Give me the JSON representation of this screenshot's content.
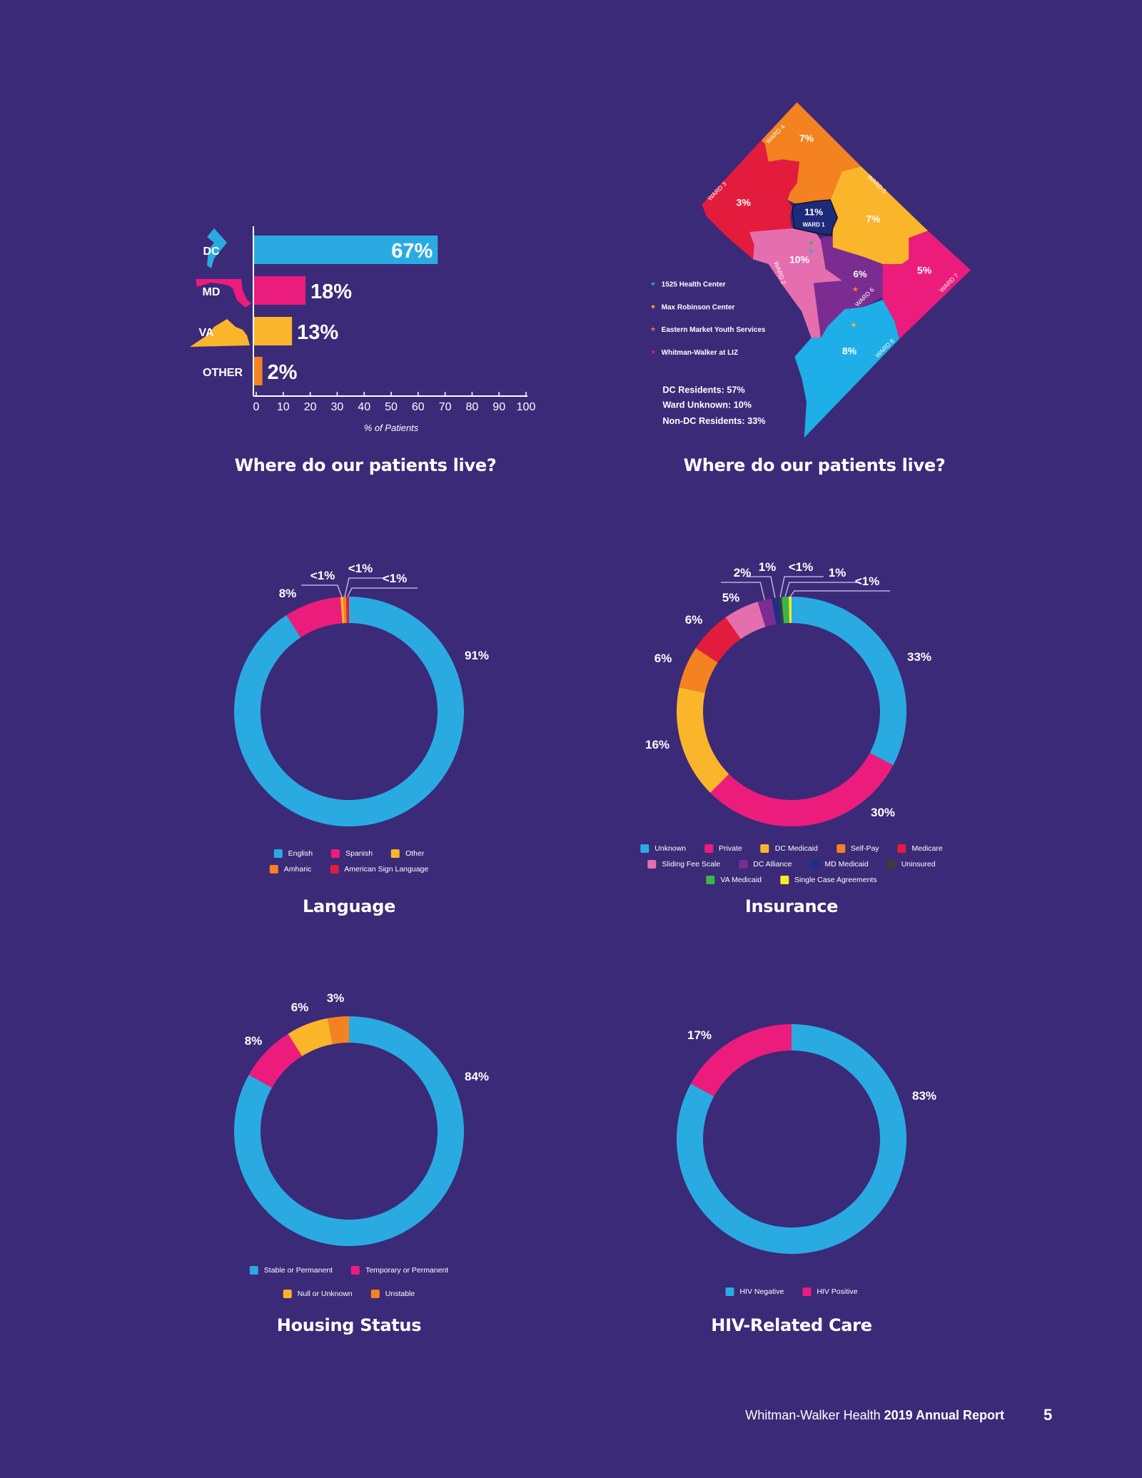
{
  "chart_data": [
    {
      "type": "bar",
      "orientation": "horizontal",
      "title": "Where do our patients live?",
      "categories": [
        "DC",
        "MD",
        "VA",
        "OTHER"
      ],
      "values": [
        67,
        18,
        13,
        2
      ],
      "value_labels": [
        "67%",
        "18%",
        "13%",
        "2%"
      ],
      "colors": [
        "#29abe2",
        "#ec1c7c",
        "#fbb52b",
        "#f58220"
      ],
      "xlabel": "% of Patients",
      "ylabel": "",
      "xlim": [
        0,
        100
      ],
      "xticks": [
        "0",
        "10",
        "20",
        "30",
        "40",
        "50",
        "60",
        "70",
        "80",
        "90",
        "100"
      ],
      "grid": false
    },
    {
      "type": "pie",
      "donut": true,
      "title": "Language",
      "slices": [
        {
          "label": "English",
          "value": 91,
          "display": "91%",
          "color": "#29abe2"
        },
        {
          "label": "Spanish",
          "value": 8,
          "display": "8%",
          "color": "#ec1c7c"
        },
        {
          "label": "Other",
          "value": 0.4,
          "display": "<1%",
          "color": "#fbb52b"
        },
        {
          "label": "Amharic",
          "value": 0.4,
          "display": "<1%",
          "color": "#f58220"
        },
        {
          "label": "American Sign Language",
          "value": 0.4,
          "display": "<1%",
          "color": "#e31b3d"
        }
      ],
      "legend_order": [
        "English",
        "Spanish",
        "Other",
        "Amharic",
        "American Sign Language"
      ]
    },
    {
      "type": "pie",
      "donut": true,
      "title": "Insurance",
      "slices": [
        {
          "label": "Unknown",
          "value": 33,
          "display": "33%",
          "color": "#29abe2"
        },
        {
          "label": "Private",
          "value": 30,
          "display": "30%",
          "color": "#ec1c7c"
        },
        {
          "label": "DC Medicaid",
          "value": 16,
          "display": "16%",
          "color": "#fbb52b"
        },
        {
          "label": "Self-Pay",
          "value": 6,
          "display": "6%",
          "color": "#f58220"
        },
        {
          "label": "Medicare",
          "value": 6,
          "display": "6%",
          "color": "#e31b3d"
        },
        {
          "label": "Sliding Fee Scale",
          "value": 5,
          "display": "5%",
          "color": "#e56fae"
        },
        {
          "label": "DC Alliance",
          "value": 2,
          "display": "2%",
          "color": "#7b2c91"
        },
        {
          "label": "MD Medicaid",
          "value": 1,
          "display": "1%",
          "color": "#1e3085"
        },
        {
          "label": "Uninsured",
          "value": 0.4,
          "display": "<1%",
          "color": "#3d3d3d"
        },
        {
          "label": "VA Medicaid",
          "value": 1,
          "display": "1%",
          "color": "#3ab54a"
        },
        {
          "label": "Single Case Agreements",
          "value": 0.4,
          "display": "<1%",
          "color": "#f4ec24"
        }
      ]
    },
    {
      "type": "pie",
      "donut": true,
      "title": "Housing Status",
      "slices": [
        {
          "label": "Stable or Permanent",
          "value": 84,
          "display": "84%",
          "color": "#29abe2"
        },
        {
          "label": "Temporary or Permanent",
          "value": 8,
          "display": "8%",
          "color": "#ec1c7c"
        },
        {
          "label": "Null or Unknown",
          "value": 6,
          "display": "6%",
          "color": "#fbb52b"
        },
        {
          "label": "Unstable",
          "value": 3,
          "display": "3%",
          "color": "#f58220"
        }
      ]
    },
    {
      "type": "pie",
      "donut": true,
      "title": "HIV-Related Care",
      "slices": [
        {
          "label": "HIV Negative",
          "value": 83,
          "display": "83%",
          "color": "#29abe2"
        },
        {
          "label": "HIV Positive",
          "value": 17,
          "display": "17%",
          "color": "#ec1c7c"
        }
      ]
    }
  ],
  "map": {
    "title": "Where do our patients live?",
    "wards": [
      {
        "name": "WARD 1",
        "value": "11%",
        "color": "#1e2a7a"
      },
      {
        "name": "WARD 2",
        "value": "10%",
        "color": "#e56fae"
      },
      {
        "name": "WARD 3",
        "value": "3%",
        "color": "#e31b3d"
      },
      {
        "name": "WARD 4",
        "value": "7%",
        "color": "#f58220"
      },
      {
        "name": "WARD 5",
        "value": "7%",
        "color": "#fbb52b"
      },
      {
        "name": "WARD 6",
        "value": "6%",
        "color": "#7b2c91"
      },
      {
        "name": "WARD 7",
        "value": "5%",
        "color": "#ec1c7c"
      },
      {
        "name": "WARD 8",
        "value": "8%",
        "color": "#1eaee8"
      }
    ],
    "locations": [
      {
        "name": "1525 Health Center",
        "color": "#29abe2"
      },
      {
        "name": "Max Robinson Center",
        "color": "#fbb52b"
      },
      {
        "name": "Eastern Market Youth Services",
        "color": "#f58220"
      },
      {
        "name": "Whitman-Walker at LIZ",
        "color": "#ec1c7c"
      }
    ],
    "stats": [
      "DC Residents: 57%",
      "Ward Unknown: 10%",
      "Non-DC Residents: 33%"
    ]
  },
  "footer": {
    "org": "Whitman-Walker Health",
    "report": "2019 Annual Report",
    "page_number": "5"
  }
}
